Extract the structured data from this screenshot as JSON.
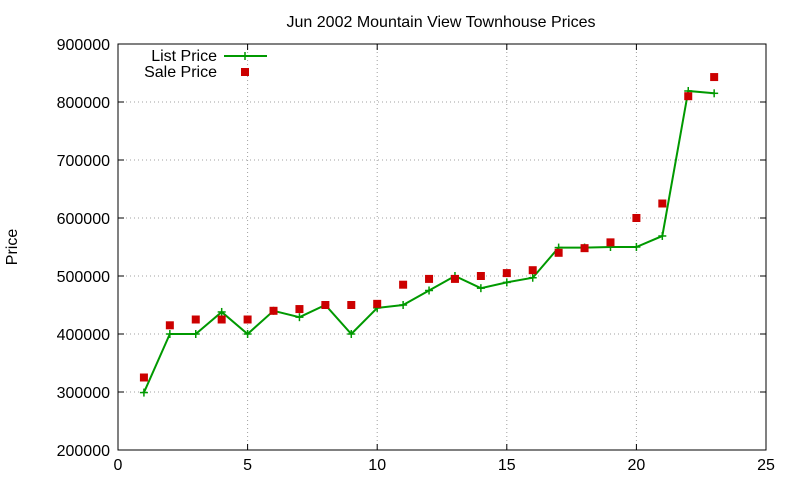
{
  "chart_data": {
    "type": "line",
    "title": "Jun 2002 Mountain View Townhouse Prices",
    "xlabel": "",
    "ylabel": "Price",
    "xlim": [
      0,
      25
    ],
    "ylim": [
      200000,
      900000
    ],
    "x_ticks": [
      0,
      5,
      10,
      15,
      20,
      25
    ],
    "y_ticks": [
      200000,
      300000,
      400000,
      500000,
      600000,
      700000,
      800000,
      900000
    ],
    "grid": true,
    "legend": "top-left",
    "series": [
      {
        "name": "List Price",
        "style": "line-cross",
        "color": "#009900",
        "points": [
          [
            1,
            299000
          ],
          [
            2,
            400000
          ],
          [
            3,
            400000
          ],
          [
            4,
            438000
          ],
          [
            5,
            400000
          ],
          [
            6,
            440000
          ],
          [
            7,
            429000
          ],
          [
            8,
            450000
          ],
          [
            9,
            400000
          ],
          [
            10,
            445000
          ],
          [
            11,
            450000
          ],
          [
            12,
            475000
          ],
          [
            13,
            500000
          ],
          [
            14,
            479000
          ],
          [
            15,
            489000
          ],
          [
            16,
            497000
          ],
          [
            17,
            549000
          ],
          [
            18,
            549000
          ],
          [
            19,
            550000
          ],
          [
            20,
            550000
          ],
          [
            21,
            569000
          ],
          [
            22,
            819000
          ],
          [
            23,
            815000
          ]
        ]
      },
      {
        "name": "Sale Price",
        "style": "square",
        "color": "#cc0000",
        "points": [
          [
            1,
            325000
          ],
          [
            2,
            415000
          ],
          [
            3,
            425000
          ],
          [
            4,
            425000
          ],
          [
            5,
            425000
          ],
          [
            6,
            440000
          ],
          [
            7,
            443000
          ],
          [
            8,
            450000
          ],
          [
            9,
            450000
          ],
          [
            10,
            452000
          ],
          [
            11,
            485000
          ],
          [
            12,
            495000
          ],
          [
            13,
            495000
          ],
          [
            14,
            500000
          ],
          [
            15,
            505000
          ],
          [
            16,
            510000
          ],
          [
            17,
            540000
          ],
          [
            18,
            548000
          ],
          [
            19,
            558000
          ],
          [
            20,
            600000
          ],
          [
            21,
            625000
          ],
          [
            22,
            810000
          ],
          [
            23,
            843000
          ]
        ]
      }
    ]
  }
}
